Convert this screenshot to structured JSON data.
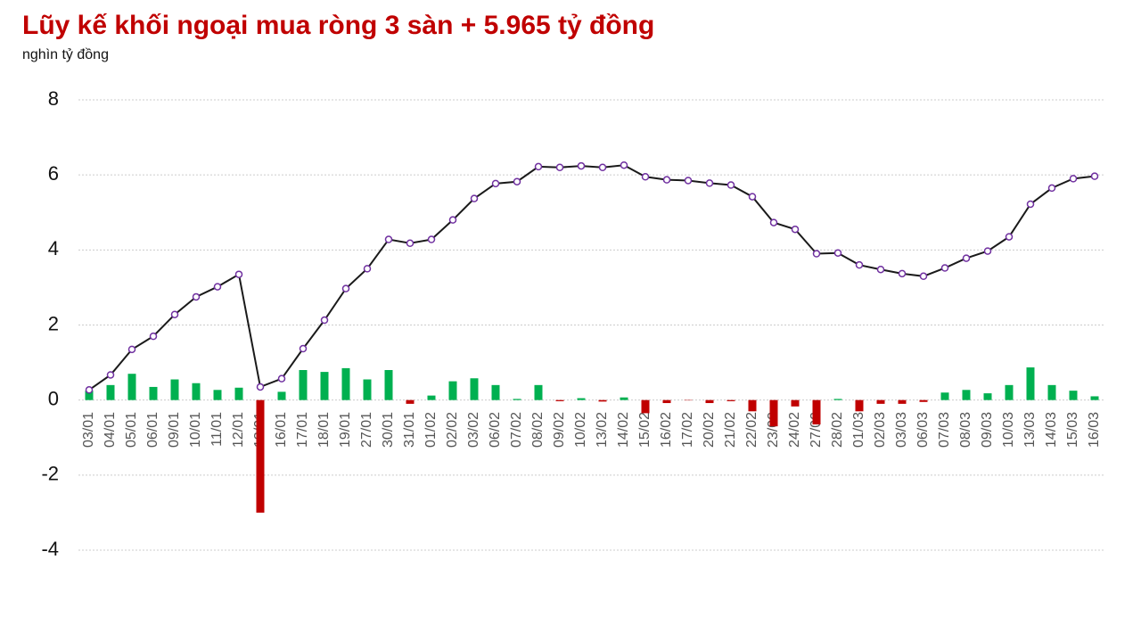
{
  "chart_data": {
    "type": "combo",
    "title": "Lũy kế khối ngoại mua ròng 3 sàn + 5.965 tỷ đồng",
    "subtitle": "nghìn tỷ đồng",
    "categories": [
      "03/01",
      "04/01",
      "05/01",
      "06/01",
      "09/01",
      "10/01",
      "11/01",
      "12/01",
      "13/01",
      "16/01",
      "17/01",
      "18/01",
      "19/01",
      "27/01",
      "30/01",
      "31/01",
      "01/02",
      "02/02",
      "03/02",
      "06/02",
      "07/02",
      "08/02",
      "09/02",
      "10/02",
      "13/02",
      "14/02",
      "15/02",
      "16/02",
      "17/02",
      "20/02",
      "21/02",
      "22/02",
      "23/02",
      "24/02",
      "27/02",
      "28/02",
      "01/03",
      "02/03",
      "03/03",
      "06/03",
      "07/03",
      "08/03",
      "09/03",
      "10/03",
      "13/03",
      "14/03",
      "15/03",
      "16/03"
    ],
    "series": [
      {
        "type": "bar",
        "color": "#00b050",
        "negative_color": "#c00000",
        "values": [
          0.25,
          0.4,
          0.7,
          0.35,
          0.55,
          0.45,
          0.27,
          0.33,
          -3.0,
          0.22,
          0.8,
          0.75,
          0.85,
          0.55,
          0.8,
          -0.1,
          0.12,
          0.5,
          0.58,
          0.4,
          0.03,
          0.4,
          -0.03,
          0.05,
          -0.04,
          0.07,
          -0.35,
          -0.08,
          -0.01,
          -0.08,
          -0.03,
          -0.3,
          -0.7,
          -0.17,
          -0.65,
          0.03,
          -0.3,
          -0.1,
          -0.1,
          -0.05,
          0.2,
          0.27,
          0.18,
          0.4,
          0.87,
          0.4,
          0.25,
          0.1
        ]
      },
      {
        "type": "line",
        "color": "#1a1a1a",
        "marker_fill": "#ffffff",
        "marker_color": "#7030a0",
        "values": [
          0.27,
          0.67,
          1.35,
          1.7,
          2.28,
          2.75,
          3.02,
          3.35,
          0.35,
          0.57,
          1.37,
          2.13,
          2.97,
          3.5,
          4.28,
          4.18,
          4.28,
          4.8,
          5.37,
          5.77,
          5.82,
          6.22,
          6.2,
          6.24,
          6.2,
          6.26,
          5.95,
          5.87,
          5.85,
          5.78,
          5.73,
          5.42,
          4.73,
          4.55,
          3.9,
          3.92,
          3.6,
          3.48,
          3.37,
          3.3,
          3.52,
          3.78,
          3.97,
          4.35,
          5.22,
          5.65,
          5.9,
          5.965
        ]
      }
    ],
    "ylim": [
      -4,
      8
    ],
    "yticks": [
      -4,
      -2,
      0,
      2,
      4,
      6,
      8
    ],
    "grid": true
  }
}
